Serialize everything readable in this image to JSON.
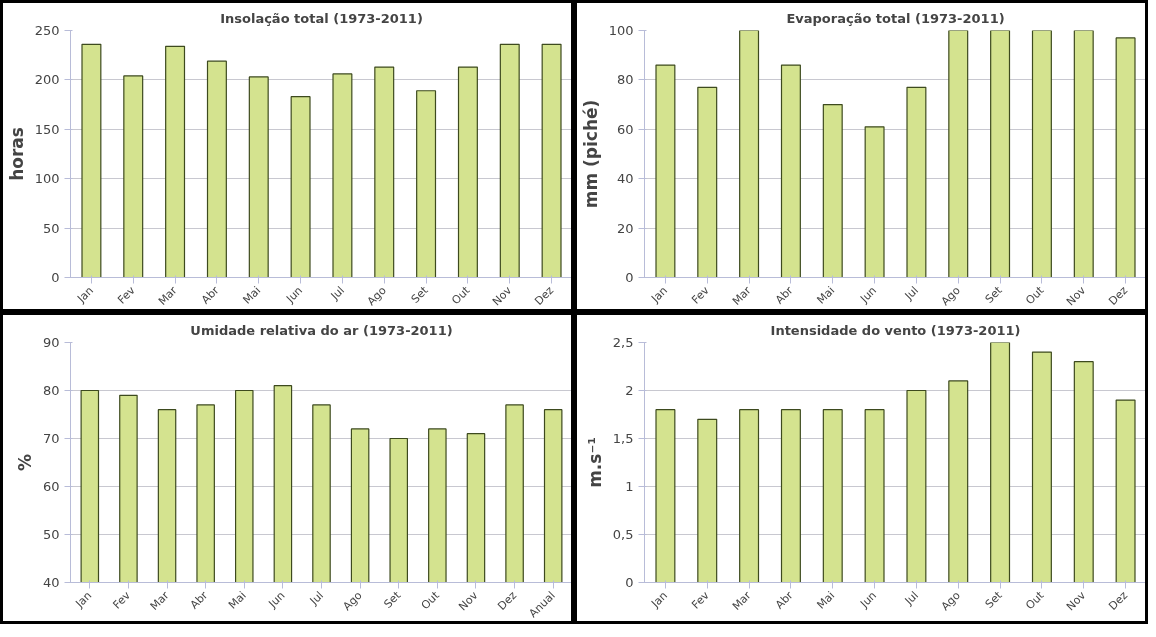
{
  "chart_data": [
    {
      "type": "bar",
      "title": "Insolação total (1973-2011)",
      "ylabel": "horas",
      "categories": [
        "Jan",
        "Fev",
        "Mar",
        "Abr",
        "Mai",
        "Jun",
        "Jul",
        "Ago",
        "Set",
        "Out",
        "Nov",
        "Dez"
      ],
      "values": [
        236,
        204,
        234,
        219,
        203,
        183,
        206,
        213,
        189,
        213,
        236,
        236
      ],
      "color": "#d4e38f",
      "ylim": [
        0,
        250
      ],
      "yticks": [
        0,
        50,
        100,
        150,
        200,
        250
      ],
      "grid": "y",
      "legend": false
    },
    {
      "type": "bar",
      "title": "Evaporação total (1973-2011)",
      "ylabel": "mm (piché)",
      "categories": [
        "Jan",
        "Fev",
        "Mar",
        "Abr",
        "Mai",
        "Jun",
        "Jul",
        "Ago",
        "Set",
        "Out",
        "Nov",
        "Dez"
      ],
      "values": [
        86,
        77,
        100,
        86,
        70,
        61,
        77,
        100,
        100,
        100,
        100,
        97
      ],
      "color": "#d4e38f",
      "ylim": [
        0,
        100
      ],
      "yticks": [
        0,
        20,
        40,
        60,
        80,
        100
      ],
      "grid": "y",
      "legend": false
    },
    {
      "type": "bar",
      "title": "Umidade relativa do ar (1973-2011)",
      "ylabel": "%",
      "categories": [
        "Jan",
        "Fev",
        "Mar",
        "Abr",
        "Mai",
        "Jun",
        "Jul",
        "Ago",
        "Set",
        "Out",
        "Nov",
        "Dez",
        "Anual"
      ],
      "values": [
        80,
        79,
        76,
        77,
        80,
        81,
        77,
        72,
        70,
        72,
        71,
        77,
        76
      ],
      "color": "#d4e38f",
      "ylim": [
        40,
        90
      ],
      "yticks": [
        40,
        50,
        60,
        70,
        80,
        90
      ],
      "grid": "y",
      "legend": false
    },
    {
      "type": "bar",
      "title": "Intensidade do vento (1973-2011)",
      "ylabel": "m.s⁻¹",
      "categories": [
        "Jan",
        "Fev",
        "Mar",
        "Abr",
        "Mai",
        "Jun",
        "Jul",
        "Ago",
        "Set",
        "Out",
        "Nov",
        "Dez"
      ],
      "values": [
        1.8,
        1.7,
        1.8,
        1.8,
        1.8,
        1.8,
        2.0,
        2.1,
        2.5,
        2.4,
        2.3,
        1.9
      ],
      "color": "#d4e38f",
      "ylim": [
        0,
        2.5
      ],
      "yticks": [
        0,
        {
          "value": 0.5,
          "label": "0,5"
        },
        1,
        {
          "value": 1.5,
          "label": "1,5"
        },
        2,
        {
          "value": 2.5,
          "label": "2,5"
        }
      ],
      "grid": "y",
      "legend": false
    }
  ]
}
